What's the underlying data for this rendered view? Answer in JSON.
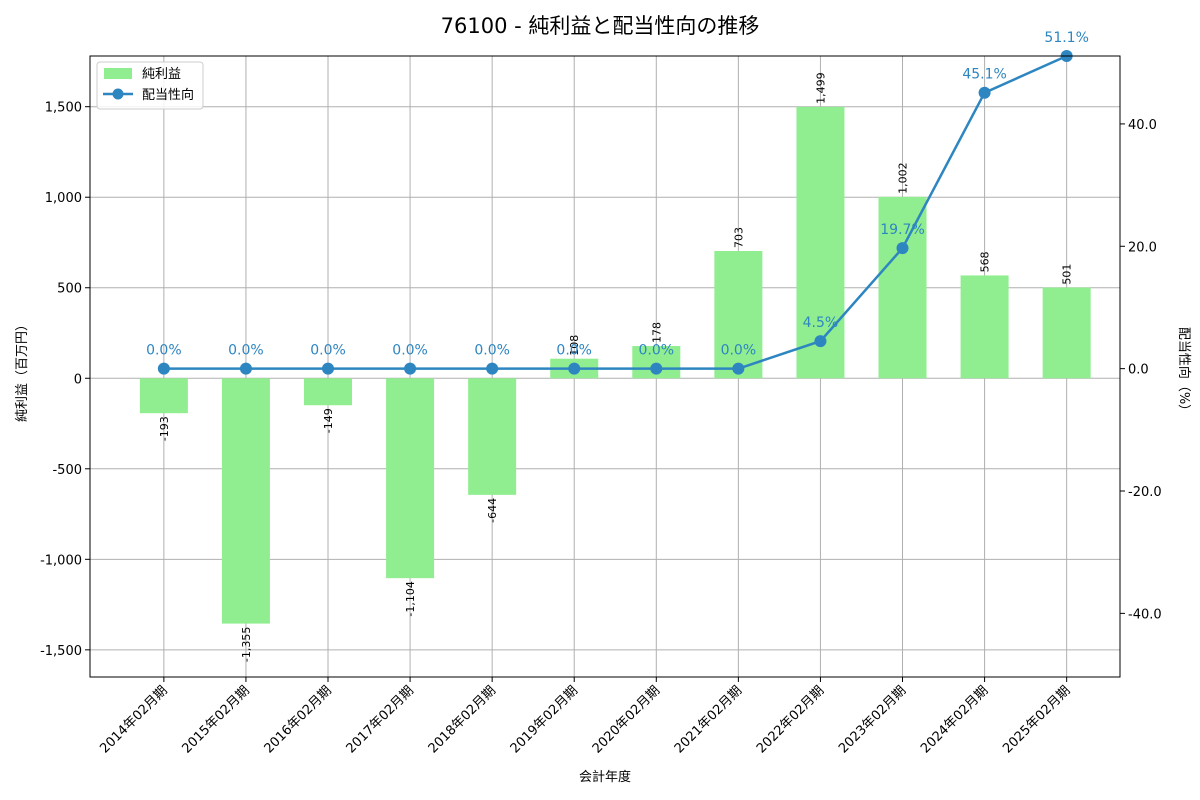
{
  "chart_data": {
    "type": "bar",
    "title": "76100 - 純利益と配当性向の推移",
    "xlabel": "会計年度",
    "ylabel": "純利益（百万円）",
    "y2label": "配当性向（%）",
    "categories": [
      "2014年02月期",
      "2015年02月期",
      "2016年02月期",
      "2017年02月期",
      "2018年02月期",
      "2019年02月期",
      "2020年02月期",
      "2021年02月期",
      "2022年02月期",
      "2023年02月期",
      "2024年02月期",
      "2025年02月期"
    ],
    "series": [
      {
        "name": "純利益",
        "type": "bar",
        "axis": "left",
        "color": "#90ee90",
        "values": [
          -193,
          -1355,
          -149,
          -1104,
          -644,
          108,
          178,
          703,
          1499,
          1002,
          568,
          501
        ],
        "labels": [
          "-193",
          "-1,355",
          "-149",
          "-1,104",
          "-644",
          "108",
          "178",
          "703",
          "1,499",
          "1,002",
          "568",
          "501"
        ]
      },
      {
        "name": "配当性向",
        "type": "line",
        "axis": "right",
        "color": "#2e86c1",
        "values": [
          0.0,
          0.0,
          0.0,
          0.0,
          0.0,
          0.0,
          0.0,
          0.0,
          4.5,
          19.7,
          45.1,
          51.1
        ],
        "labels": [
          "0.0%",
          "0.0%",
          "0.0%",
          "0.0%",
          "0.0%",
          "0.0%",
          "0.0%",
          "0.0%",
          "4.5%",
          "19.7%",
          "45.1%",
          "51.1%"
        ]
      }
    ],
    "ylim": [
      -1650,
      1780
    ],
    "y2lim": [
      -50.4,
      51.1
    ],
    "yticks": [
      -1500,
      -1000,
      -500,
      0,
      500,
      1000,
      1500
    ],
    "ytick_labels": [
      "-1,500",
      "-1,000",
      "-500",
      "0",
      "500",
      "1,000",
      "1,500"
    ],
    "y2ticks": [
      -40,
      -20,
      0,
      20,
      40
    ],
    "y2tick_labels": [
      "-40.0",
      "-20.0",
      "0.0",
      "20.0",
      "40.0"
    ],
    "grid": true,
    "legend": "top-left"
  }
}
